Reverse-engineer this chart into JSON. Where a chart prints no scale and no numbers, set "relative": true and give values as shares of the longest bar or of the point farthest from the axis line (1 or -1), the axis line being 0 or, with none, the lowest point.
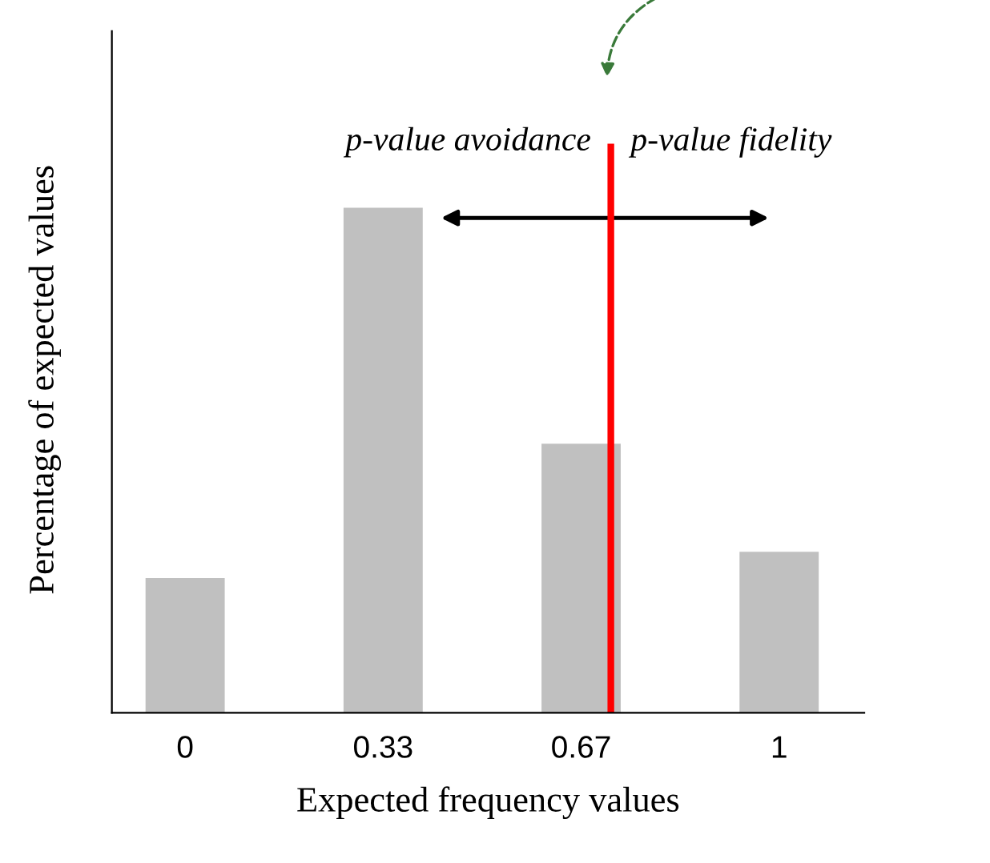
{
  "chart_data": {
    "type": "bar",
    "xlabel": "Expected frequency values",
    "ylabel": "Percentage of expected values",
    "categories": [
      "0",
      "0.33",
      "0.67",
      "1"
    ],
    "values": [
      0.267,
      1,
      0.533,
      0.319
    ],
    "color": "#c0c0c0",
    "relative": true,
    "ref_lines": [
      {
        "axis": "x",
        "value": "0.67",
        "color": "#ff0000",
        "line_style": "solid"
      }
    ],
    "annotations": [
      "p-value avoidance",
      "p-value fidelity"
    ]
  }
}
